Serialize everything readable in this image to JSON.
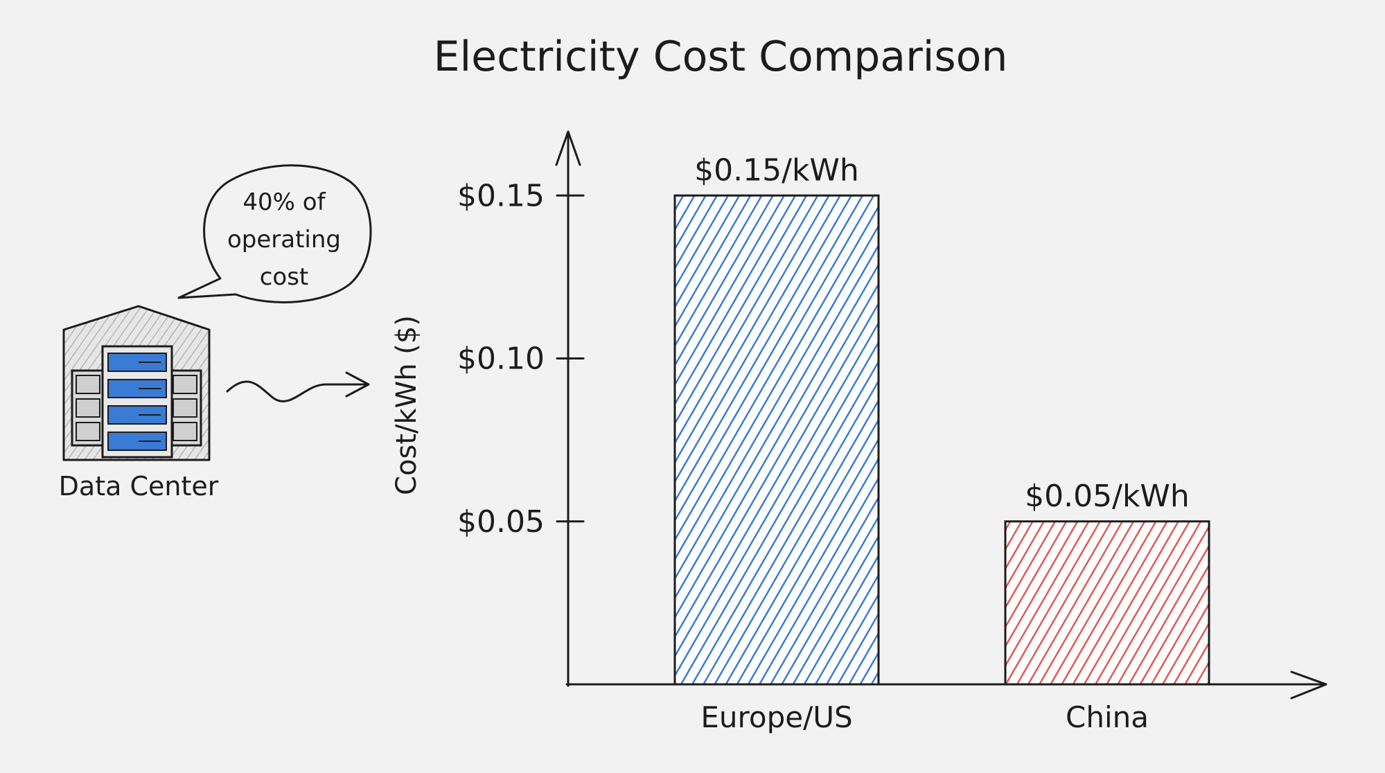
{
  "chart_data": {
    "type": "bar",
    "title": "Electricity Cost Comparison",
    "xlabel": "",
    "ylabel": "Cost/kWh ($)",
    "categories": [
      "Europe/US",
      "China"
    ],
    "values": [
      0.15,
      0.05
    ],
    "value_labels": [
      "$0.15/kWh",
      "$0.05/kWh"
    ],
    "colors": [
      "#3a7bd5",
      "#e05a55"
    ],
    "yticks": [
      0.05,
      0.1,
      0.15
    ],
    "ytick_labels": [
      "$0.05",
      "$0.10",
      "$0.15"
    ],
    "ylim": [
      0,
      0.2
    ],
    "grid": false
  },
  "illustration": {
    "label": "Data Center",
    "bubble_lines": [
      "40% of",
      "operating",
      "cost"
    ],
    "icons": [
      "data-center-icon",
      "arrow-icon"
    ],
    "server_color": "#3a7bd5"
  }
}
